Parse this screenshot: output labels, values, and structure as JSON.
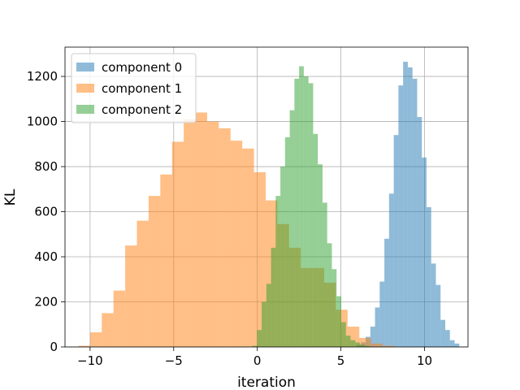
{
  "chart_data": {
    "type": "bar",
    "subtype": "histogram",
    "xlabel": "iteration",
    "ylabel": "KL",
    "xlim": [
      -11.5,
      12.6
    ],
    "ylim": [
      0,
      1330
    ],
    "xticks": [
      -10,
      -5,
      0,
      5,
      10
    ],
    "xtick_labels": [
      "−10",
      "−5",
      "0",
      "5",
      "10"
    ],
    "yticks": [
      0,
      200,
      400,
      600,
      800,
      1000,
      1200
    ],
    "grid": true,
    "legend_position": "top-left",
    "series": [
      {
        "name": "component 0",
        "color": "#1f77b4",
        "opacity": 0.5,
        "bin_width": 0.28,
        "x_start": 5.92,
        "values": [
          10,
          20,
          45,
          90,
          175,
          290,
          480,
          680,
          940,
          1160,
          1265,
          1240,
          1190,
          1020,
          840,
          620,
          370,
          275,
          120,
          75,
          30,
          15
        ]
      },
      {
        "name": "component 1",
        "color": "#ff7f0e",
        "opacity": 0.5,
        "bin_width": 0.7,
        "x_start": -10.7,
        "values": [
          5,
          65,
          150,
          250,
          450,
          560,
          670,
          765,
          910,
          1010,
          1040,
          1000,
          970,
          915,
          880,
          775,
          650,
          545,
          440,
          350,
          350,
          285,
          165,
          90,
          40,
          15,
          5
        ]
      },
      {
        "name": "component 2",
        "color": "#2ca02c",
        "opacity": 0.5,
        "bin_width": 0.28,
        "x_start": -0.3,
        "values": [
          5,
          75,
          200,
          280,
          440,
          670,
          800,
          930,
          1050,
          1190,
          1245,
          1200,
          1170,
          945,
          810,
          640,
          460,
          345,
          225,
          110,
          50,
          30,
          20,
          10,
          5,
          2
        ]
      }
    ]
  }
}
